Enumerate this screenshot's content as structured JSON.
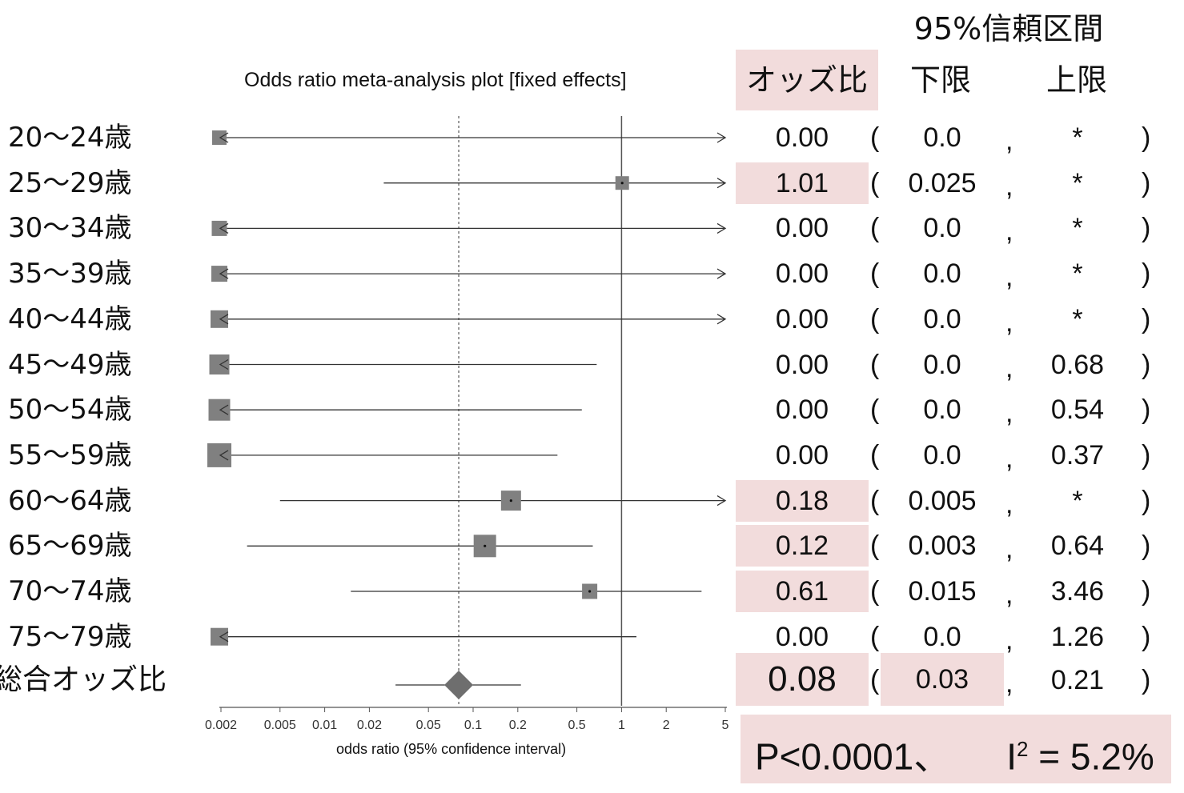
{
  "chart_data": {
    "type": "forest",
    "title": "Odds ratio meta-analysis plot [fixed effects]",
    "xlabel": "odds ratio (95% confidence interval)",
    "xscale": "log",
    "xlim": [
      0.002,
      5
    ],
    "ticks": [
      "0.002",
      "0.005",
      "0.01",
      "0.02",
      "0.05",
      "0.1",
      "0.2",
      "0.5",
      "1",
      "2",
      "5"
    ],
    "tick_values": [
      0.002,
      0.005,
      0.01,
      0.02,
      0.05,
      0.1,
      0.2,
      0.5,
      1,
      2,
      5
    ],
    "reference_line": 1,
    "pooled_line": 0.08,
    "rows": [
      {
        "label": "20～24歳",
        "or": "0.00",
        "lower": "0.0",
        "upper": "*",
        "est": 0.002,
        "lo": 0.002,
        "hi": 5,
        "weight": 0.4,
        "arrow_left": true,
        "arrow_right": true,
        "highlight": false
      },
      {
        "label": "25～29歳",
        "or": "1.01",
        "lower": "0.025",
        "upper": "*",
        "est": 1.01,
        "lo": 0.025,
        "hi": 5,
        "weight": 0.35,
        "arrow_left": false,
        "arrow_right": true,
        "highlight": true
      },
      {
        "label": "30～34歳",
        "or": "0.00",
        "lower": "0.0",
        "upper": "*",
        "est": 0.002,
        "lo": 0.002,
        "hi": 5,
        "weight": 0.45,
        "arrow_left": true,
        "arrow_right": true,
        "highlight": false
      },
      {
        "label": "35～39歳",
        "or": "0.00",
        "lower": "0.0",
        "upper": "*",
        "est": 0.002,
        "lo": 0.002,
        "hi": 5,
        "weight": 0.5,
        "arrow_left": true,
        "arrow_right": true,
        "highlight": false
      },
      {
        "label": "40～44歳",
        "or": "0.00",
        "lower": "0.0",
        "upper": "*",
        "est": 0.002,
        "lo": 0.002,
        "hi": 5,
        "weight": 0.6,
        "arrow_left": true,
        "arrow_right": true,
        "highlight": false
      },
      {
        "label": "45～49歳",
        "or": "0.00",
        "lower": "0.0",
        "upper": "0.68",
        "est": 0.002,
        "lo": 0.002,
        "hi": 0.68,
        "weight": 0.75,
        "arrow_left": true,
        "arrow_right": false,
        "highlight": false
      },
      {
        "label": "50～54歳",
        "or": "0.00",
        "lower": "0.0",
        "upper": "0.54",
        "est": 0.002,
        "lo": 0.002,
        "hi": 0.54,
        "weight": 0.85,
        "arrow_left": true,
        "arrow_right": false,
        "highlight": false
      },
      {
        "label": "55～59歳",
        "or": "0.00",
        "lower": "0.0",
        "upper": "0.37",
        "est": 0.002,
        "lo": 0.002,
        "hi": 0.37,
        "weight": 1.0,
        "arrow_left": true,
        "arrow_right": false,
        "highlight": false
      },
      {
        "label": "60～64歳",
        "or": "0.18",
        "lower": "0.005",
        "upper": "*",
        "est": 0.18,
        "lo": 0.005,
        "hi": 5,
        "weight": 0.75,
        "arrow_left": false,
        "arrow_right": true,
        "highlight": true
      },
      {
        "label": "65～69歳",
        "or": "0.12",
        "lower": "0.003",
        "upper": "0.64",
        "est": 0.12,
        "lo": 0.003,
        "hi": 0.64,
        "weight": 0.9,
        "arrow_left": false,
        "arrow_right": false,
        "highlight": true
      },
      {
        "label": "70～74歳",
        "or": "0.61",
        "lower": "0.015",
        "upper": "3.46",
        "est": 0.61,
        "lo": 0.015,
        "hi": 3.46,
        "weight": 0.45,
        "arrow_left": false,
        "arrow_right": false,
        "highlight": true
      },
      {
        "label": "75～79歳",
        "or": "0.00",
        "lower": "0.0",
        "upper": "1.26",
        "est": 0.002,
        "lo": 0.002,
        "hi": 1.26,
        "weight": 0.6,
        "arrow_left": true,
        "arrow_right": false,
        "highlight": false
      }
    ],
    "pooled": {
      "label": "総合オッズ比",
      "or": "0.08",
      "lower": "0.03",
      "upper": "0.21",
      "est": 0.08,
      "lo": 0.03,
      "hi": 0.21
    }
  },
  "table": {
    "ci_header": "95%信頼区間",
    "or_header": "オッズ比",
    "lower_header": "下限",
    "upper_header": "上限",
    "open_paren": "(",
    "comma": ",",
    "close_paren": ")"
  },
  "stats": {
    "p_text": "P<0.0001、",
    "i2_base": "I",
    "i2_sup": "2",
    "i2_value": " = 5.2%"
  },
  "colors": {
    "highlight": "#f2dcdc",
    "marker": "#808080",
    "line": "#333333"
  }
}
